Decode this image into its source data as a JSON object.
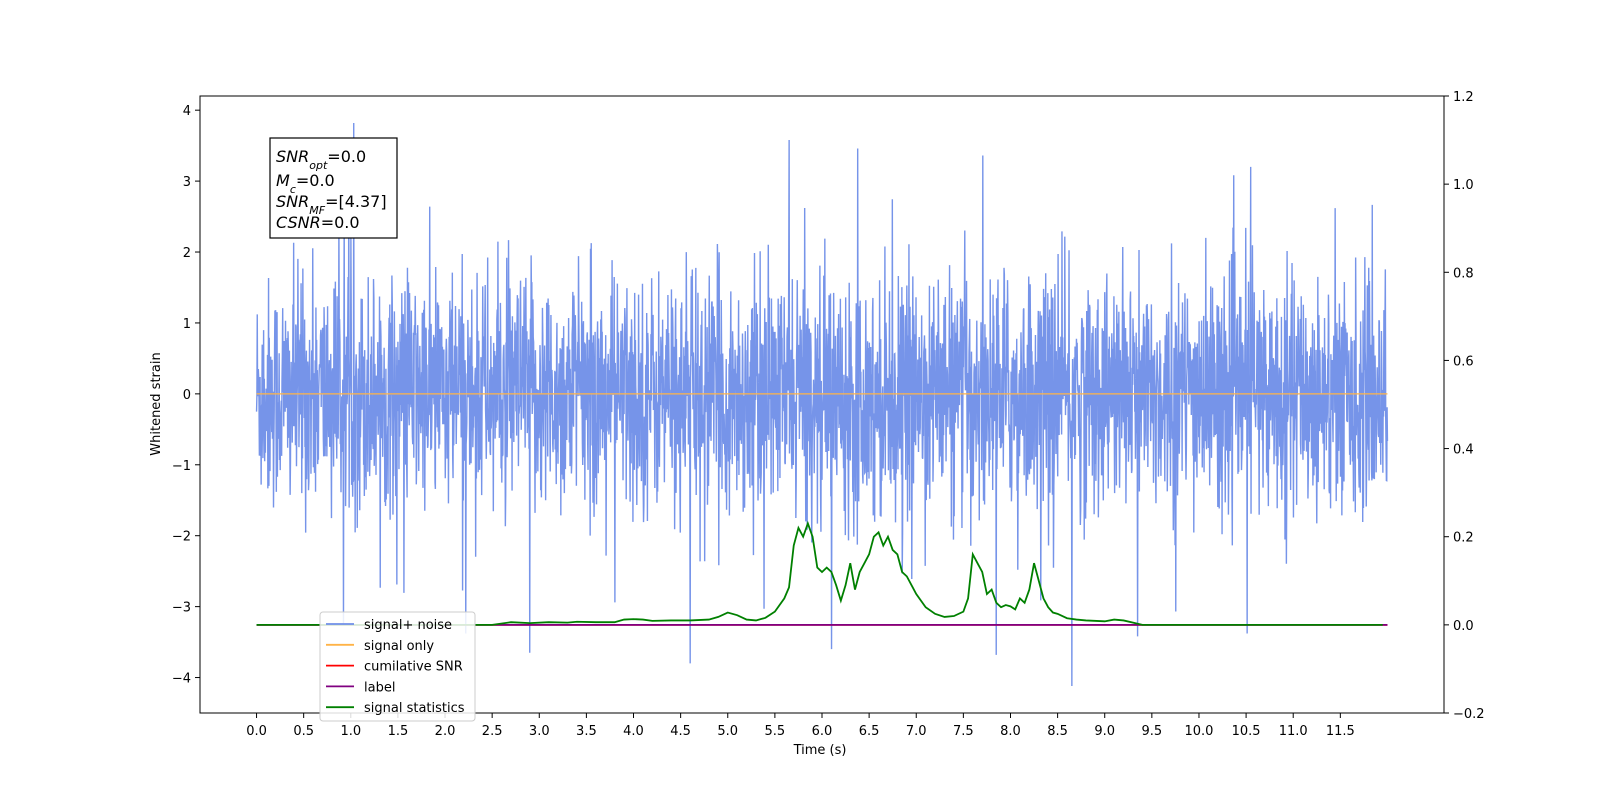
{
  "chart_data": {
    "type": "line",
    "xlabel": "Time (s)",
    "ylabel": "Whitened strain",
    "xlim": [
      -0.6,
      12.6
    ],
    "ylim": [
      -4.5,
      4.2
    ],
    "y2lim": [
      -0.2,
      1.2
    ],
    "x_ticks": [
      "0.0",
      "0.5",
      "1.0",
      "1.5",
      "2.0",
      "2.5",
      "3.0",
      "3.5",
      "4.0",
      "4.5",
      "5.0",
      "5.5",
      "6.0",
      "6.5",
      "7.0",
      "7.5",
      "8.0",
      "8.5",
      "9.0",
      "9.5",
      "10.0",
      "10.5",
      "11.0",
      "11.5"
    ],
    "y_ticks": [
      "4",
      "3",
      "2",
      "1",
      "0",
      "−1",
      "−2",
      "−3",
      "−4"
    ],
    "y2_ticks": [
      "1.2",
      "1.0",
      "0.8",
      "0.6",
      "0.4",
      "0.2",
      "0.0",
      "−0.2"
    ],
    "legend_position": "lower-left",
    "grid": false,
    "annotation": {
      "snr_opt": {
        "base": "SNR",
        "sub": "opt",
        "value": "=0.0"
      },
      "chirp_mass": {
        "base": "M",
        "sub": "c",
        "value": "=0.0"
      },
      "snr_mf": {
        "base": "SNR",
        "sub": "MF",
        "value": "=[4.37]"
      },
      "csnr": {
        "base": "CSNR",
        "sub": "",
        "value": "=0.0"
      }
    },
    "series": [
      {
        "name": "signal+ noise",
        "axis": "left",
        "color": "#6f8ee8",
        "description": "dense whitened noise, amplitude about ±1.5 typical with spikes to ±3.8",
        "x_range": [
          0.0,
          12.0
        ],
        "envelope": {
          "typical_abs": 1.3,
          "peak_max": 3.82,
          "peak_min": -4.12
        },
        "notable_peaks": [
          {
            "x": 1.03,
            "y": 3.82
          },
          {
            "x": 5.65,
            "y": 3.58
          },
          {
            "x": 6.38,
            "y": 3.46
          },
          {
            "x": 10.55,
            "y": 3.2
          },
          {
            "x": 8.65,
            "y": -4.12
          },
          {
            "x": 4.6,
            "y": -3.8
          },
          {
            "x": 2.9,
            "y": -3.65
          },
          {
            "x": 7.85,
            "y": -3.68
          },
          {
            "x": 6.1,
            "y": -3.6
          },
          {
            "x": 9.35,
            "y": -3.42
          }
        ]
      },
      {
        "name": "signal only",
        "axis": "left",
        "color": "#ffb347",
        "x": [
          0.0,
          12.0
        ],
        "y": [
          0.0,
          0.0
        ]
      },
      {
        "name": "cumilative SNR",
        "axis": "right",
        "color": "#ff0000",
        "x": [
          0.0,
          12.0
        ],
        "y": [
          0.0,
          0.0
        ]
      },
      {
        "name": "label",
        "axis": "right",
        "color": "#800080",
        "x": [
          0.0,
          12.0
        ],
        "y": [
          0.0,
          0.0
        ]
      },
      {
        "name": "signal statistics",
        "axis": "right",
        "color": "#008000",
        "x": [
          0.0,
          0.5,
          1.0,
          1.5,
          2.0,
          2.5,
          2.7,
          2.9,
          3.1,
          3.3,
          3.4,
          3.6,
          3.8,
          3.9,
          4.0,
          4.1,
          4.2,
          4.4,
          4.6,
          4.8,
          4.9,
          5.0,
          5.1,
          5.2,
          5.3,
          5.4,
          5.5,
          5.6,
          5.65,
          5.7,
          5.75,
          5.8,
          5.85,
          5.9,
          5.95,
          6.0,
          6.05,
          6.1,
          6.15,
          6.2,
          6.25,
          6.3,
          6.35,
          6.4,
          6.45,
          6.5,
          6.55,
          6.6,
          6.65,
          6.7,
          6.75,
          6.8,
          6.85,
          6.9,
          6.95,
          7.0,
          7.1,
          7.2,
          7.3,
          7.4,
          7.5,
          7.55,
          7.6,
          7.65,
          7.7,
          7.75,
          7.8,
          7.85,
          7.9,
          7.95,
          8.0,
          8.05,
          8.1,
          8.15,
          8.2,
          8.25,
          8.3,
          8.35,
          8.4,
          8.45,
          8.5,
          8.6,
          8.7,
          8.8,
          9.0,
          9.1,
          9.2,
          9.3,
          9.4,
          9.5,
          10.0,
          11.0,
          11.5,
          11.95
        ],
        "y": [
          0.0,
          0.0,
          0.0,
          0.0,
          0.0,
          0.0,
          0.006,
          0.004,
          0.006,
          0.005,
          0.007,
          0.006,
          0.006,
          0.012,
          0.013,
          0.012,
          0.009,
          0.01,
          0.01,
          0.012,
          0.018,
          0.028,
          0.022,
          0.012,
          0.01,
          0.016,
          0.03,
          0.06,
          0.085,
          0.18,
          0.22,
          0.2,
          0.23,
          0.2,
          0.13,
          0.12,
          0.13,
          0.12,
          0.09,
          0.055,
          0.09,
          0.14,
          0.08,
          0.12,
          0.14,
          0.16,
          0.2,
          0.21,
          0.18,
          0.2,
          0.17,
          0.16,
          0.12,
          0.11,
          0.09,
          0.07,
          0.04,
          0.025,
          0.018,
          0.02,
          0.03,
          0.06,
          0.16,
          0.14,
          0.12,
          0.07,
          0.08,
          0.05,
          0.04,
          0.045,
          0.042,
          0.035,
          0.06,
          0.05,
          0.08,
          0.14,
          0.1,
          0.06,
          0.04,
          0.028,
          0.025,
          0.015,
          0.012,
          0.01,
          0.008,
          0.012,
          0.01,
          0.005,
          0.0,
          0.0,
          0.0,
          0.0,
          0.0,
          0.0
        ]
      }
    ]
  }
}
